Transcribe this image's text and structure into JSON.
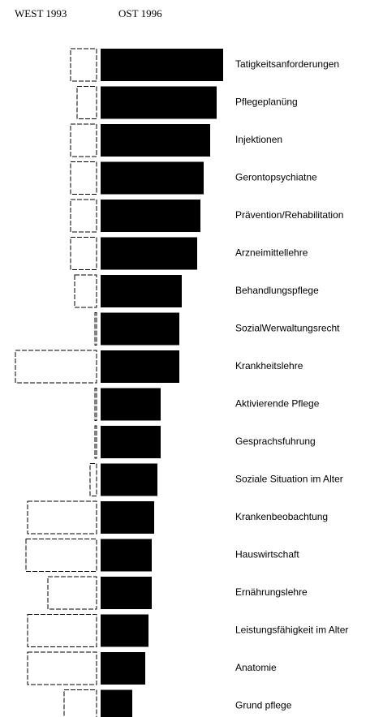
{
  "chart_data": {
    "type": "back-to-back-bar",
    "categories": [
      "Tatigkeitsanforderungen",
      "Pflegeplanüng",
      "Injektionen",
      "Gerontopsychiatne",
      "Prävention/Rehabilitation",
      "Arzneimittellehre",
      "Behandlungspflege",
      "SozialWerwaltungsrecht",
      "Krankheitslehre",
      "Aktivierende Pflege",
      "Gesprachsfuhrung",
      "Soziale Situation im Alter",
      "Krankenbeobachtung",
      "Hauswirtschaft",
      "Ernährungslehre",
      "Leistungsfähigkeit im Alter",
      "Anatomie",
      "Grund pflege"
    ],
    "series": [
      {
        "name": "WEST 1993",
        "color": "#ffffff",
        "values": [
          32,
          24,
          32,
          32,
          32,
          32,
          27,
          2,
          100,
          2,
          2,
          8,
          85,
          87,
          60,
          85,
          85,
          40
        ]
      },
      {
        "name": "OST 1996",
        "color": "#000000",
        "values": [
          151,
          143,
          135,
          127,
          123,
          119,
          100,
          97,
          97,
          74,
          74,
          70,
          66,
          63,
          63,
          59,
          55,
          39
        ]
      }
    ]
  }
}
